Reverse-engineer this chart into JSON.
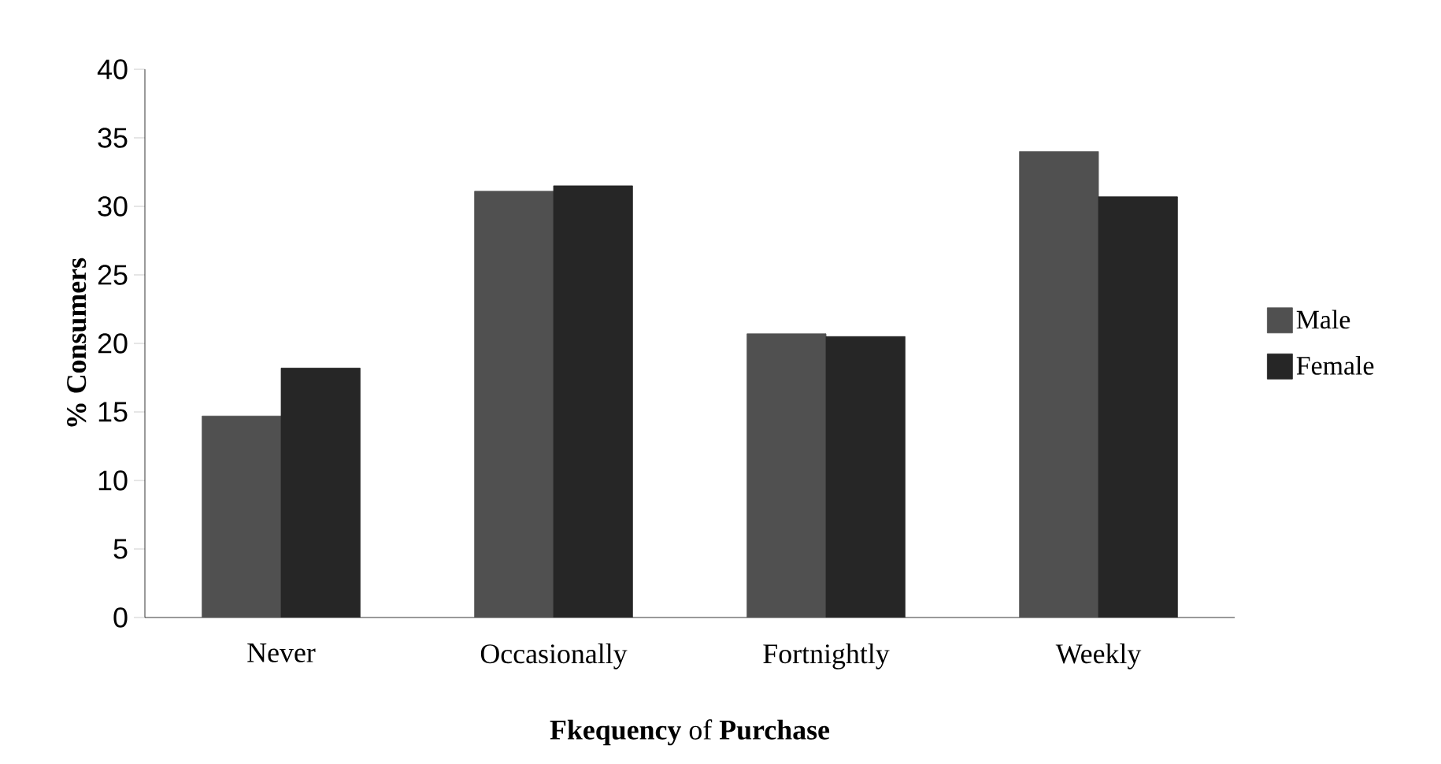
{
  "chart_data": {
    "type": "bar",
    "xlabel": "**Fkequency** of **Purchase**",
    "ylabel": "% Consumers",
    "categories": [
      "Never",
      "Occasionally",
      "Fortnightly",
      "Weekly"
    ],
    "series": [
      {
        "name": "Male",
        "color": "#505050",
        "values": [
          14.7,
          31.1,
          20.7,
          34.0
        ]
      },
      {
        "name": "Female",
        "color": "#262626",
        "values": [
          18.2,
          31.5,
          20.5,
          30.7
        ]
      }
    ],
    "ylim": [
      0,
      40
    ],
    "yticks": [
      0,
      5,
      10,
      15,
      20,
      25,
      30,
      35,
      40
    ],
    "legend": "right"
  }
}
